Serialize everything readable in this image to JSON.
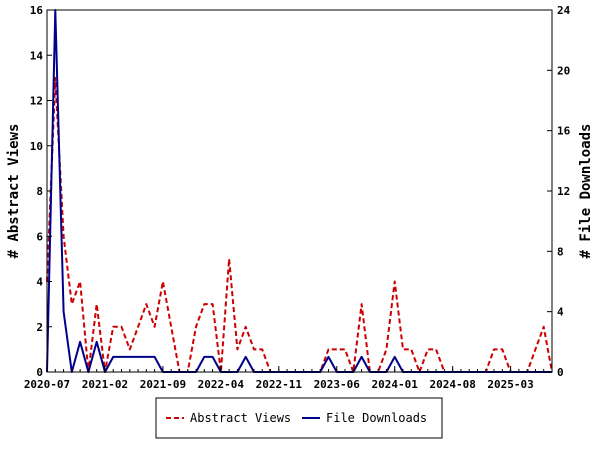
{
  "chart_data": {
    "type": "line",
    "title": "",
    "xlabel": "",
    "ylabel_left": "# Abstract Views",
    "ylabel_right": "# File Downloads",
    "ylim_left": [
      0,
      16
    ],
    "ylim_right": [
      0,
      24
    ],
    "yticks_left": [
      "0",
      "2",
      "4",
      "6",
      "8",
      "10",
      "12",
      "14",
      "16"
    ],
    "yticks_right": [
      "0",
      "4",
      "8",
      "12",
      "16",
      "20",
      "24"
    ],
    "xticks": [
      "2020-07",
      "2021-02",
      "2021-09",
      "2022-04",
      "2022-11",
      "2023-06",
      "2024-01",
      "2024-08",
      "2025-03"
    ],
    "grid": false,
    "legend_position": "bottom",
    "x": [
      "2020-07",
      "2020-08",
      "2020-09",
      "2020-10",
      "2020-11",
      "2020-12",
      "2021-01",
      "2021-02",
      "2021-03",
      "2021-04",
      "2021-05",
      "2021-06",
      "2021-07",
      "2021-08",
      "2021-09",
      "2021-10",
      "2021-11",
      "2021-12",
      "2022-01",
      "2022-02",
      "2022-03",
      "2022-04",
      "2022-05",
      "2022-06",
      "2022-07",
      "2022-08",
      "2022-09",
      "2022-10",
      "2022-11",
      "2022-12",
      "2023-01",
      "2023-02",
      "2023-03",
      "2023-04",
      "2023-05",
      "2023-06",
      "2023-07",
      "2023-08",
      "2023-09",
      "2023-10",
      "2023-11",
      "2023-12",
      "2024-01",
      "2024-02",
      "2024-03",
      "2024-04",
      "2024-05",
      "2024-06",
      "2024-07",
      "2024-08",
      "2024-09",
      "2024-10",
      "2024-11",
      "2024-12",
      "2025-01",
      "2025-02",
      "2025-03",
      "2025-04",
      "2025-05",
      "2025-06",
      "2025-07",
      "2025-08"
    ],
    "series": [
      {
        "name": "Abstract Views",
        "axis": "left",
        "color": "#cc0000",
        "dash": "dashed",
        "values": [
          4,
          13,
          6,
          3,
          4,
          0,
          3,
          0,
          2,
          2,
          1,
          2,
          3,
          2,
          4,
          2,
          0,
          0,
          2,
          3,
          3,
          0,
          5,
          1,
          2,
          1,
          1,
          0,
          0,
          0,
          0,
          0,
          0,
          0,
          1,
          1,
          1,
          0,
          3,
          0,
          0,
          1,
          4,
          1,
          1,
          0,
          1,
          1,
          0,
          0,
          0,
          0,
          0,
          0,
          1,
          1,
          0,
          0,
          0,
          1,
          2,
          0
        ]
      },
      {
        "name": "File Downloads",
        "axis": "right",
        "color": "#00008b",
        "dash": "solid",
        "values": [
          0,
          24,
          4,
          0,
          2,
          0,
          2,
          0,
          1,
          1,
          1,
          1,
          1,
          1,
          0,
          0,
          0,
          0,
          0,
          1,
          1,
          0,
          0,
          0,
          1,
          0,
          0,
          0,
          0,
          0,
          0,
          0,
          0,
          0,
          1,
          0,
          0,
          0,
          1,
          0,
          0,
          0,
          1,
          0,
          0,
          0,
          0,
          0,
          0,
          0,
          0,
          0,
          0,
          0,
          0,
          0,
          0,
          0,
          0,
          0,
          0,
          0
        ]
      }
    ]
  }
}
